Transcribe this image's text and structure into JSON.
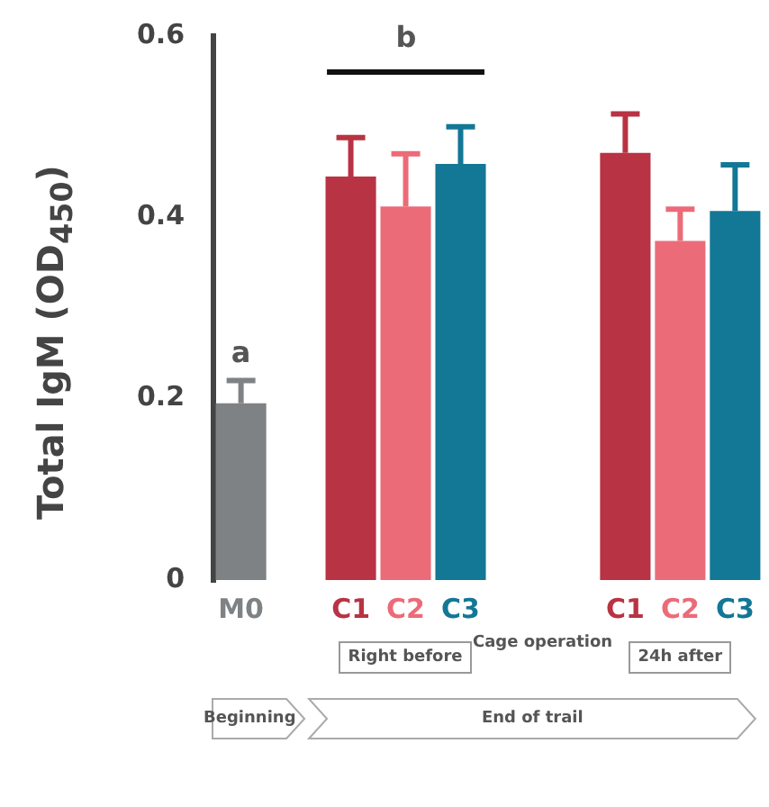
{
  "chart_data": {
    "type": "bar",
    "ylabel": "Total IgM (OD$_{450}$)",
    "categories": [
      "M0",
      null,
      "C1",
      "C2",
      "C3",
      null,
      null,
      "C1",
      "C2",
      "C3"
    ],
    "values": [
      0.195,
      null,
      0.445,
      0.412,
      0.459,
      null,
      null,
      0.471,
      0.374,
      0.407
    ],
    "errors": [
      [
        0.195,
        0.22
      ],
      null,
      [
        0.445,
        0.488
      ],
      [
        0.412,
        0.47
      ],
      [
        0.459,
        0.5
      ],
      null,
      null,
      [
        0.471,
        0.514
      ],
      [
        0.374,
        0.409
      ],
      [
        0.407,
        0.458
      ]
    ],
    "colors": [
      "#7f8285",
      "#7f8285",
      "#b83343",
      "#ec6b78",
      "#137796",
      "#7f8285",
      "#7f8285",
      "#b83343",
      "#ec6b78",
      "#137796"
    ],
    "ylim": [
      0,
      0.6
    ],
    "yticks": [
      0,
      0.2,
      0.4,
      0.6
    ],
    "grid": false,
    "legend": false,
    "annotations": [
      "a",
      "b",
      "Right before",
      "Cage operation",
      "24h after",
      "Beginning",
      "End of trail"
    ]
  }
}
